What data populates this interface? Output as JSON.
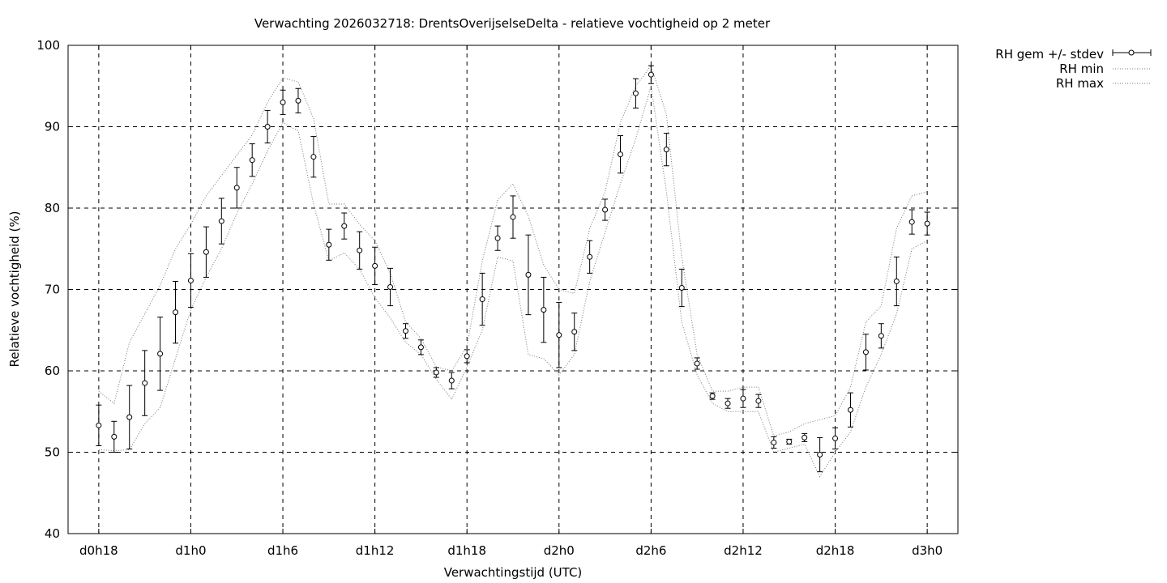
{
  "chart_data": {
    "type": "scatter",
    "title": "Verwachting 2026032718: DrentsOverijselseDelta - relatieve vochtigheid op 2 meter",
    "xlabel": "Verwachtingstijd (UTC)",
    "ylabel": "Relatieve vochtigheid (%)",
    "ylim": [
      40,
      100
    ],
    "xlim": [
      -2,
      56
    ],
    "yticks": [
      40,
      50,
      60,
      70,
      80,
      90,
      100
    ],
    "xticks": [
      {
        "hour": 0,
        "label": "d0h18"
      },
      {
        "hour": 6,
        "label": "d1h0"
      },
      {
        "hour": 12,
        "label": "d1h6"
      },
      {
        "hour": 18,
        "label": "d1h12"
      },
      {
        "hour": 24,
        "label": "d1h18"
      },
      {
        "hour": 30,
        "label": "d2h0"
      },
      {
        "hour": 36,
        "label": "d2h6"
      },
      {
        "hour": 42,
        "label": "d2h12"
      },
      {
        "hour": 48,
        "label": "d2h18"
      },
      {
        "hour": 54,
        "label": "d3h0"
      }
    ],
    "grid": true,
    "legend_position": "outside-top-right",
    "series": [
      {
        "name": "RH gem +/- stdev",
        "style": "errorbars",
        "x": [
          0,
          1,
          2,
          3,
          4,
          5,
          6,
          7,
          8,
          9,
          10,
          11,
          12,
          13,
          14,
          15,
          16,
          17,
          18,
          19,
          20,
          21,
          22,
          23,
          24,
          25,
          26,
          27,
          28,
          29,
          30,
          31,
          32,
          33,
          34,
          35,
          36,
          37,
          38,
          39,
          40,
          41,
          42,
          43,
          44,
          45,
          46,
          47,
          48,
          49,
          50,
          51,
          52,
          53,
          54
        ],
        "mean": [
          53.3,
          51.9,
          54.3,
          58.5,
          62.1,
          67.2,
          71.1,
          74.6,
          78.4,
          82.5,
          85.9,
          90.0,
          93.0,
          93.2,
          86.3,
          75.5,
          77.8,
          74.8,
          72.9,
          70.3,
          64.9,
          62.9,
          59.8,
          58.8,
          61.8,
          68.8,
          76.3,
          78.9,
          71.8,
          67.5,
          64.4,
          64.8,
          74.0,
          79.8,
          86.6,
          94.1,
          96.4,
          87.2,
          70.2,
          60.9,
          56.9,
          56.0,
          56.6,
          56.3,
          51.2,
          51.3,
          51.8,
          49.7,
          51.7,
          55.2,
          62.3,
          64.3,
          71.0,
          78.3,
          78.1
        ],
        "stdev": [
          2.5,
          1.9,
          3.9,
          4.0,
          4.5,
          3.8,
          3.3,
          3.1,
          2.8,
          2.5,
          2.0,
          2.0,
          1.5,
          1.5,
          2.5,
          1.9,
          1.6,
          2.3,
          2.3,
          2.3,
          0.9,
          0.9,
          0.6,
          1.0,
          0.8,
          3.2,
          1.5,
          2.6,
          4.9,
          4.0,
          4.0,
          2.3,
          2.0,
          1.3,
          2.3,
          1.8,
          1.1,
          2.0,
          2.3,
          0.7,
          0.4,
          0.6,
          1.1,
          0.8,
          0.7,
          0.3,
          0.5,
          2.1,
          1.3,
          2.1,
          2.2,
          1.5,
          3.0,
          1.5,
          1.4
        ]
      },
      {
        "name": "RH min",
        "style": "dotted",
        "x": [
          0,
          1,
          2,
          3,
          4,
          5,
          6,
          7,
          8,
          9,
          10,
          11,
          12,
          13,
          14,
          15,
          16,
          17,
          18,
          19,
          20,
          21,
          22,
          23,
          24,
          25,
          26,
          27,
          28,
          29,
          30,
          31,
          32,
          33,
          34,
          35,
          36,
          37,
          38,
          39,
          40,
          41,
          42,
          43,
          44,
          45,
          46,
          47,
          48,
          49,
          50,
          51,
          52,
          53,
          54
        ],
        "values": [
          50.3,
          50.2,
          50.3,
          53.5,
          55.5,
          61.5,
          67.5,
          71.5,
          75.0,
          79.3,
          83.0,
          87.0,
          90.5,
          89.5,
          80.5,
          73.5,
          74.5,
          72.5,
          69.0,
          66.5,
          63.5,
          62.0,
          59.0,
          56.5,
          60.5,
          65.0,
          74.0,
          73.5,
          62.0,
          61.5,
          59.5,
          62.0,
          71.0,
          77.0,
          83.0,
          88.5,
          95.0,
          82.0,
          66.0,
          59.5,
          56.0,
          55.0,
          55.0,
          55.0,
          50.0,
          50.5,
          51.0,
          47.0,
          50.0,
          52.5,
          58.0,
          62.0,
          67.0,
          75.0,
          76.0
        ]
      },
      {
        "name": "RH max",
        "style": "dotted",
        "x": [
          0,
          1,
          2,
          3,
          4,
          5,
          6,
          7,
          8,
          9,
          10,
          11,
          12,
          13,
          14,
          15,
          16,
          17,
          18,
          19,
          20,
          21,
          22,
          23,
          24,
          25,
          26,
          27,
          28,
          29,
          30,
          31,
          32,
          33,
          34,
          35,
          36,
          37,
          38,
          39,
          40,
          41,
          42,
          43,
          44,
          45,
          46,
          47,
          48,
          49,
          50,
          51,
          52,
          53,
          54
        ],
        "values": [
          57.5,
          56.0,
          63.5,
          67.0,
          70.5,
          75.0,
          78.0,
          81.5,
          84.0,
          86.5,
          89.0,
          93.0,
          96.0,
          95.5,
          91.0,
          80.5,
          80.5,
          78.0,
          76.0,
          72.0,
          66.0,
          64.0,
          60.5,
          60.0,
          63.0,
          73.5,
          81.0,
          83.0,
          79.0,
          73.0,
          70.0,
          69.5,
          77.5,
          82.0,
          90.5,
          95.0,
          97.5,
          91.5,
          74.0,
          62.0,
          57.5,
          57.5,
          58.0,
          58.0,
          52.0,
          52.5,
          53.5,
          54.0,
          54.5,
          58.0,
          66.0,
          68.0,
          77.5,
          81.5,
          82.0
        ]
      }
    ]
  }
}
